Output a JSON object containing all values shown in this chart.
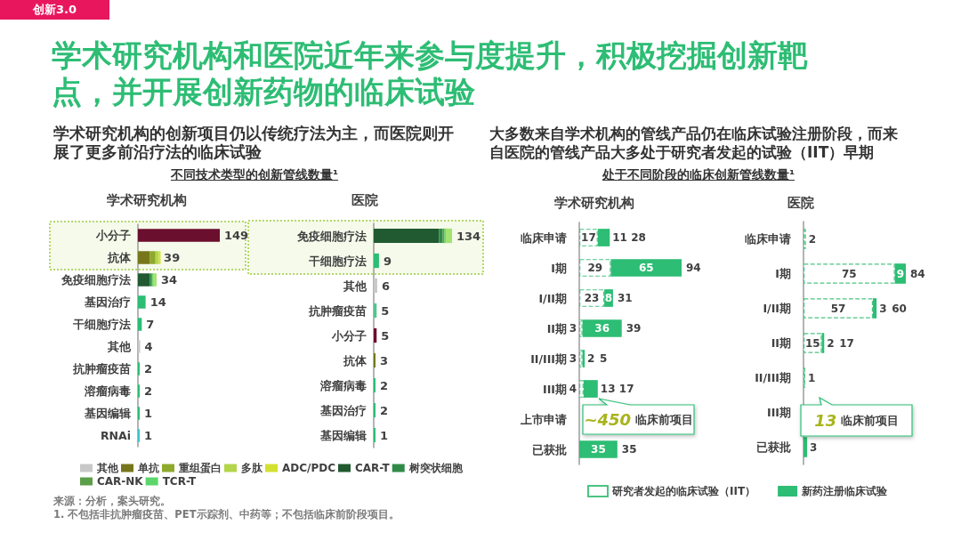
{
  "chart_data": [
    {
      "type": "other",
      "title": "学术研究机构和医院近年来参与度提升，积极挖掘创新靶点，并开展创新药物的临床试验",
      "annotations": [
        "创新3.0",
        "来源：分析，案头研究。",
        "1. 不包括非抗肿瘤疫苗、PET示踪剂、中药等；不包括临床前阶段项目。"
      ]
    },
    {
      "type": "other",
      "title": "学术研究机构的创新项目仍以传统疗法为主，而医院则开展了更多前沿疗法的临床试验",
      "subtitle": "不同技术类型的创新管线数量¹"
    },
    {
      "type": "bar",
      "orientation": "horizontal",
      "stacked": true,
      "title": "学术研究机构",
      "tick_labels": "y",
      "legend": "bottom",
      "categories": [
        "小分子",
        "抗体",
        "免疫细胞疗法",
        "基因治疗",
        "干细胞疗法",
        "其他",
        "抗肿瘤疫苗",
        "溶瘤病毒",
        "基因编辑",
        "RNAi"
      ],
      "series": [
        {
          "colors": [
            "#6b0f2e",
            null,
            null,
            "#2dbd74",
            "#2dbd74",
            null,
            "#2dbd74",
            "#2dbd74",
            "#2dbd74",
            "#3ec3c9"
          ],
          "values": [
            149,
            null,
            null,
            14,
            7,
            null,
            2,
            2,
            1,
            1
          ],
          "value_labels": [
            "149",
            null,
            null,
            "14",
            "7",
            null,
            "2",
            "2",
            "1",
            "1"
          ]
        },
        {
          "name": "其他",
          "color": "#c8c8c8",
          "values": [
            null,
            null,
            null,
            null,
            null,
            4,
            null,
            null,
            null,
            null
          ],
          "value_labels": [
            null,
            null,
            null,
            null,
            null,
            "4",
            null,
            null,
            null,
            null
          ]
        },
        {
          "name": "单抗",
          "color": "#77761a",
          "values": [
            null,
            22,
            null,
            null,
            null,
            null,
            null,
            null,
            null,
            null
          ]
        },
        {
          "name": "重组蛋白",
          "color": "#8ea92c",
          "values": [
            null,
            10,
            null,
            null,
            null,
            null,
            null,
            null,
            null,
            null
          ]
        },
        {
          "name": "多肽",
          "color": "#b3d54c",
          "values": [
            null,
            6,
            null,
            null,
            null,
            null,
            null,
            null,
            null,
            null
          ]
        },
        {
          "name": "ADC/PDC",
          "color": "#d4e030",
          "values": [
            null,
            1,
            null,
            null,
            null,
            null,
            null,
            null,
            null,
            null
          ]
        },
        {
          "name": "CAR-T",
          "color": "#215a30",
          "values": [
            null,
            null,
            22,
            null,
            null,
            null,
            null,
            null,
            null,
            null
          ]
        },
        {
          "name": "树突状细胞",
          "color": "#2e8b47",
          "values": [
            null,
            null,
            3,
            null,
            null,
            null,
            null,
            null,
            null,
            null
          ]
        },
        {
          "name": "CAR-NK",
          "color": "#5c9e4a",
          "values": [
            null,
            null,
            1,
            null,
            null,
            null,
            null,
            null,
            null,
            null
          ]
        },
        {
          "name": "TCR-T",
          "color": "#5cd66c",
          "values": [
            null,
            null,
            1,
            null,
            null,
            null,
            null,
            null,
            null,
            null
          ]
        },
        {
          "color": "#a3e370",
          "values": [
            null,
            null,
            7,
            null,
            null,
            null,
            null,
            null,
            null,
            null
          ]
        }
      ],
      "totals": [
        null,
        "39",
        "34",
        null,
        null,
        null,
        null,
        null,
        null,
        null
      ],
      "bands": [
        {
          "axis": "y",
          "from": "小分子",
          "to": "抗体",
          "color": "#9fcc3e"
        }
      ]
    },
    {
      "type": "bar",
      "orientation": "horizontal",
      "stacked": true,
      "title": "医院",
      "tick_labels": "y",
      "categories": [
        "免疫细胞疗法",
        "干细胞疗法",
        "其他",
        "抗肿瘤疫苗",
        "小分子",
        "抗体",
        "溶瘤病毒",
        "基因治疗",
        "基因编辑"
      ],
      "series": [
        {
          "colors": [
            null,
            "#2dbd74",
            null,
            "#55c48f",
            "#6b0f2e",
            null,
            "#2dbd74",
            "#2dbd74",
            "#2dbd74"
          ],
          "values": [
            null,
            9,
            null,
            5,
            5,
            null,
            2,
            2,
            1
          ],
          "value_labels": [
            null,
            "9",
            null,
            "5",
            "5",
            null,
            "2",
            "2",
            "1"
          ]
        },
        {
          "color": "#c8c8c8",
          "values": [
            null,
            null,
            6,
            null,
            null,
            null,
            null,
            null,
            null
          ],
          "value_labels": [
            null,
            null,
            "6",
            null,
            null,
            null,
            null,
            null,
            null
          ]
        },
        {
          "color": "#77761a",
          "values": [
            null,
            null,
            null,
            null,
            null,
            3,
            null,
            null,
            null
          ],
          "value_labels": [
            null,
            null,
            null,
            null,
            null,
            "3",
            null,
            null,
            null
          ]
        },
        {
          "color": "#215a30",
          "values": [
            112,
            null,
            null,
            null,
            null,
            null,
            null,
            null,
            null
          ]
        },
        {
          "color": "#2e8b47",
          "values": [
            6,
            null,
            null,
            null,
            null,
            null,
            null,
            null,
            null
          ]
        },
        {
          "color": "#5c9e4a",
          "values": [
            3,
            null,
            null,
            null,
            null,
            null,
            null,
            null,
            null
          ]
        },
        {
          "color": "#5cd66c",
          "values": [
            2,
            null,
            null,
            null,
            null,
            null,
            null,
            null,
            null
          ]
        },
        {
          "color": "#a3e370",
          "values": [
            11,
            null,
            null,
            null,
            null,
            null,
            null,
            null,
            null
          ]
        }
      ],
      "totals": [
        "134",
        null,
        null,
        null,
        null,
        null,
        null,
        null,
        null
      ],
      "bands": [
        {
          "axis": "y",
          "from": "免疫细胞疗法",
          "to": "干细胞疗法",
          "color": "#9fcc3e"
        }
      ]
    },
    {
      "type": "other",
      "title": "大多数来自学术机构的管线产品仍在临床试验注册阶段，而来自医院的管线产品大多处于研究者发起的试验（IIT）早期",
      "subtitle": "处于不同阶段的临床创新管线数量¹"
    },
    {
      "type": "bar",
      "orientation": "horizontal",
      "stacked": true,
      "title": "学术研究机构",
      "tick_labels": "y",
      "legend": "bottom",
      "data_labels": true,
      "categories": [
        "临床申请",
        "I期",
        "I/II期",
        "II期",
        "II/III期",
        "III期",
        "上市申请",
        "已获批"
      ],
      "series": [
        {
          "name": "研究者发起的临床试验（IIT）",
          "color": "#4cc483",
          "line_style": "dashed",
          "values": [
            17,
            29,
            23,
            3,
            3,
            4,
            null,
            null
          ]
        },
        {
          "name": "新药注册临床试验",
          "color": "#2dbd74",
          "values": [
            11,
            65,
            8,
            36,
            2,
            13,
            null,
            35
          ]
        }
      ],
      "totals": [
        "28",
        "94",
        "31",
        "39",
        "5",
        "17",
        null,
        "35"
      ],
      "annotations": [
        "~450 临床前项目"
      ]
    },
    {
      "type": "bar",
      "orientation": "horizontal",
      "stacked": true,
      "title": "医院",
      "tick_labels": "y",
      "data_labels": true,
      "categories": [
        "临床申请",
        "I期",
        "I/II期",
        "II期",
        "II/III期",
        "III期",
        "已获批"
      ],
      "series": [
        {
          "color": "#4cc483",
          "line_style": "dashed",
          "values": [
            2,
            75,
            57,
            15,
            1,
            null,
            null
          ]
        },
        {
          "color": "#2dbd74",
          "values": [
            null,
            9,
            3,
            2,
            null,
            null,
            3
          ]
        }
      ],
      "totals": [
        null,
        "84",
        "60",
        "17",
        null,
        null,
        null
      ],
      "annotations": [
        "13 临床前项目"
      ]
    }
  ]
}
